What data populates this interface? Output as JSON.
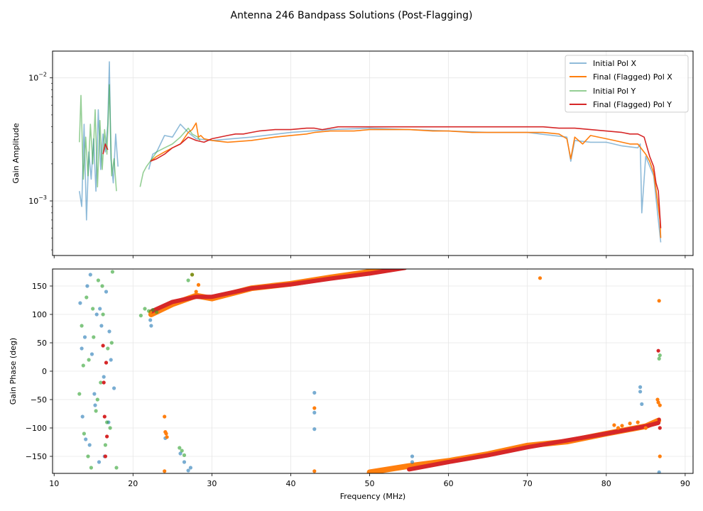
{
  "chart_data": {
    "title": "Antenna 246 Bandpass Solutions (Post-Flagging)",
    "colors": {
      "initial_x": "#1f77b4",
      "final_x": "#ff7f0e",
      "initial_y": "#2ca02c",
      "final_y": "#d62728",
      "grid": "#e6e6e6"
    },
    "panels": [
      {
        "id": "amplitude",
        "type": "line",
        "yscale": "log",
        "ylabel": "Gain Amplitude",
        "xlim": [
          9.8,
          91.0
        ],
        "ylim": [
          0.00036,
          0.0165
        ],
        "yticks": [
          {
            "value": 0.001,
            "base": "10",
            "exp": "−3"
          },
          {
            "value": 0.01,
            "base": "10",
            "exp": "−2"
          }
        ],
        "minor_yticks": [
          0.0004,
          0.0005,
          0.0006,
          0.0007,
          0.0008,
          0.0009,
          0.002,
          0.003,
          0.004,
          0.005,
          0.006,
          0.007,
          0.008,
          0.009
        ],
        "legend": {
          "position": "top-right",
          "entries": [
            {
              "label": "Initial Pol X",
              "series": "initial_x"
            },
            {
              "label": "Final (Flagged) Pol X",
              "series": "final_x"
            },
            {
              "label": "Initial Pol Y",
              "series": "initial_y"
            },
            {
              "label": "Final (Flagged) Pol Y",
              "series": "final_y"
            }
          ]
        },
        "series": [
          {
            "name": "Initial Pol X",
            "key": "initial_x",
            "alpha": 0.5,
            "x": [
              13.2,
              13.5,
              13.8,
              14.1,
              14.4,
              14.7,
              15.0,
              15.3,
              15.6,
              15.9,
              16.2,
              16.5,
              16.8,
              17.0,
              17.2,
              17.5,
              17.8,
              18.1,
              null,
              22.0,
              22.5,
              23.0,
              24.0,
              25.0,
              26.0,
              27.0,
              28.0,
              30.0,
              35.0,
              40.0,
              45.0,
              50.0,
              55.0,
              60.0,
              65.0,
              70.0,
              75.0,
              75.5,
              76.0,
              78.0,
              80.0,
              82.0,
              84.0,
              84.3,
              84.5,
              85.0,
              86.0,
              86.5,
              86.9
            ],
            "y": [
              0.0012,
              0.0009,
              0.0042,
              0.0007,
              0.0025,
              0.0015,
              0.0032,
              0.0012,
              0.0055,
              0.0018,
              0.0035,
              0.0025,
              0.0042,
              0.0135,
              0.0022,
              0.0014,
              0.0035,
              0.0019,
              null,
              0.0018,
              0.0024,
              0.0025,
              0.0034,
              0.0033,
              0.0042,
              0.0036,
              0.0032,
              0.0031,
              0.0033,
              0.0036,
              0.0038,
              0.0039,
              0.0038,
              0.0037,
              0.0036,
              0.0036,
              0.0033,
              0.0021,
              0.0031,
              0.003,
              0.003,
              0.0028,
              0.0027,
              0.0029,
              0.0008,
              0.0023,
              0.0016,
              0.0008,
              0.00046
            ]
          },
          {
            "name": "Final (Flagged) Pol X",
            "key": "final_x",
            "alpha": 1.0,
            "x": [
              22.2,
              23.0,
              24.0,
              25.0,
              26.0,
              27.0,
              27.5,
              28.0,
              28.3,
              28.6,
              29.0,
              30.0,
              32.0,
              35.0,
              38.0,
              40.0,
              42.0,
              43.0,
              45.0,
              48.0,
              50.0,
              52.0,
              55.0,
              58.0,
              60.0,
              63.0,
              65.0,
              67.0,
              70.0,
              72.0,
              74.0,
              75.0,
              75.5,
              76.0,
              77.0,
              78.0,
              80.0,
              81.0,
              82.0,
              83.0,
              84.0,
              85.0,
              85.5,
              86.0,
              86.5,
              86.8,
              86.9
            ],
            "y": [
              0.0021,
              0.0023,
              0.0025,
              0.0027,
              0.0029,
              0.0036,
              0.0038,
              0.0043,
              0.0033,
              0.0034,
              0.0032,
              0.0031,
              0.003,
              0.0031,
              0.0033,
              0.0034,
              0.0035,
              0.0036,
              0.0037,
              0.0037,
              0.0038,
              0.0038,
              0.0038,
              0.0037,
              0.0037,
              0.0036,
              0.0036,
              0.0036,
              0.0036,
              0.0036,
              0.0035,
              0.0032,
              0.0022,
              0.0033,
              0.0029,
              0.0034,
              0.0032,
              0.0031,
              0.003,
              0.0029,
              0.0029,
              0.0024,
              0.0021,
              0.0017,
              0.001,
              0.0007,
              0.0005
            ]
          },
          {
            "name": "Initial Pol Y",
            "key": "initial_y",
            "alpha": 0.5,
            "x": [
              13.2,
              13.4,
              13.7,
              14.0,
              14.3,
              14.6,
              14.9,
              15.2,
              15.5,
              15.8,
              16.1,
              16.4,
              16.7,
              17.0,
              17.3,
              17.6,
              17.9,
              null,
              20.9,
              21.3,
              21.7,
              22.2,
              23.0,
              24.0,
              25.0,
              26.0,
              27.0,
              27.5,
              28.2,
              28.5
            ],
            "y": [
              0.003,
              0.0072,
              0.0015,
              0.0033,
              0.0016,
              0.0042,
              0.002,
              0.0055,
              0.0013,
              0.0045,
              0.0018,
              0.0038,
              0.0024,
              0.0088,
              0.0016,
              0.0022,
              0.0012,
              null,
              0.0013,
              0.0017,
              0.0019,
              0.0021,
              0.0025,
              0.0027,
              0.0029,
              0.0033,
              0.0039,
              0.0035,
              0.0033,
              0.0031
            ]
          },
          {
            "name": "Final (Flagged) Pol Y",
            "key": "final_y",
            "alpha": 1.0,
            "x": [
              16.2,
              16.5,
              16.8,
              null,
              22.2,
              23.0,
              24.0,
              25.0,
              26.0,
              27.0,
              28.0,
              29.0,
              30.0,
              32.0,
              33.0,
              34.0,
              35.0,
              36.0,
              38.0,
              40.0,
              42.0,
              43.0,
              44.0,
              45.0,
              46.0,
              48.0,
              50.0,
              52.0,
              55.0,
              58.0,
              60.0,
              63.0,
              65.0,
              68.0,
              70.0,
              72.0,
              74.0,
              76.0,
              78.0,
              80.0,
              82.0,
              83.0,
              84.0,
              84.8,
              85.5,
              86.0,
              86.3,
              86.6,
              86.9
            ],
            "y": [
              0.0024,
              0.0029,
              0.0026,
              null,
              0.0021,
              0.0022,
              0.0024,
              0.0027,
              0.0029,
              0.0033,
              0.0031,
              0.003,
              0.0032,
              0.0034,
              0.0035,
              0.0035,
              0.0036,
              0.0037,
              0.0038,
              0.0038,
              0.0039,
              0.0039,
              0.0038,
              0.0039,
              0.004,
              0.004,
              0.004,
              0.004,
              0.004,
              0.004,
              0.004,
              0.004,
              0.004,
              0.004,
              0.004,
              0.004,
              0.0039,
              0.0039,
              0.0038,
              0.0037,
              0.0036,
              0.0035,
              0.0035,
              0.0033,
              0.0023,
              0.0019,
              0.0014,
              0.0012,
              0.0006
            ]
          }
        ]
      },
      {
        "id": "phase",
        "type": "scatter",
        "ylabel": "Gain Phase (deg)",
        "xlabel": "Frequency (MHz)",
        "xlim": [
          9.8,
          91.0
        ],
        "ylim": [
          -180,
          180
        ],
        "xticks": [
          10,
          20,
          30,
          40,
          50,
          60,
          70,
          80,
          90
        ],
        "yticks": [
          -150,
          -100,
          -50,
          0,
          50,
          100,
          150
        ],
        "series": [
          {
            "name": "Initial Pol X",
            "key": "initial_x",
            "alpha": 0.6,
            "x": [
              13.3,
              13.6,
              13.9,
              14.2,
              14.5,
              14.8,
              15.1,
              15.4,
              15.7,
              16.0,
              16.3,
              16.6,
              16.9,
              17.2,
              13.5,
              14.0,
              14.6,
              15.2,
              15.8,
              16.4,
              17.0,
              17.6,
              22.2,
              22.3,
              24.1,
              26.0,
              26.5,
              27.0,
              27.3,
              43.0,
              43.0,
              43.0,
              55.4,
              55.4,
              84.3,
              84.3,
              84.5,
              86.7
            ],
            "y": [
              120,
              -80,
              60,
              150,
              -130,
              30,
              -40,
              100,
              -160,
              80,
              -10,
              140,
              -90,
              20,
              40,
              -120,
              170,
              -60,
              110,
              -150,
              70,
              -30,
              90,
              80,
              -118,
              -145,
              -160,
              -175,
              -170,
              -38,
              -73,
              -102,
              -150,
              -160,
              -28,
              -36,
              -58,
              -178
            ]
          },
          {
            "name": "Final (Flagged) Pol X",
            "key": "final_x",
            "alpha": 1.0,
            "x": [
              22.2,
              24.0,
              24.0,
              24.1,
              24.2,
              24.3,
              27.5,
              28.0,
              28.3,
              43.0,
              43.0,
              71.6,
              81.0,
              81.5,
              82.0,
              83.0,
              84.0,
              85.0,
              86.5,
              86.6,
              86.7,
              86.8,
              86.8
            ],
            "y": [
              104,
              -80,
              -176,
              -107,
              -110,
              -116,
              170,
              140,
              152,
              -65,
              -176,
              164,
              -95,
              -100,
              -96,
              -92,
              -90,
              -100,
              -50,
              -55,
              124,
              -60,
              -150
            ]
          },
          {
            "name": "Initial Pol Y",
            "key": "initial_y",
            "alpha": 0.6,
            "x": [
              13.2,
              13.5,
              13.8,
              14.1,
              14.4,
              14.7,
              15.0,
              15.3,
              15.6,
              15.9,
              16.2,
              16.5,
              16.8,
              17.1,
              17.4,
              13.7,
              14.3,
              14.9,
              15.5,
              16.1,
              16.7,
              17.3,
              17.9,
              21.0,
              21.5,
              22.0,
              22.5,
              23.0,
              25.9,
              26.2,
              26.5,
              27.0,
              27.5,
              86.7,
              86.8
            ],
            "y": [
              -40,
              80,
              -110,
              130,
              20,
              -170,
              60,
              -70,
              160,
              -20,
              100,
              -130,
              40,
              -100,
              175,
              10,
              -150,
              110,
              -50,
              150,
              -90,
              50,
              -170,
              98,
              110,
              106,
              108,
              104,
              -135,
              -140,
              -148,
              160,
              170,
              22,
              28
            ]
          },
          {
            "name": "Final (Flagged) Pol Y",
            "key": "final_y",
            "alpha": 1.0,
            "x": [
              16.2,
              16.3,
              16.4,
              16.5,
              16.6,
              16.7,
              86.6,
              86.7,
              86.8
            ],
            "y": [
              45,
              -20,
              -80,
              -150,
              15,
              -115,
              36,
              -85,
              -100
            ]
          }
        ],
        "trends": [
          {
            "key": "final_x",
            "x": [
              22.3,
              25,
              28,
              30,
              35,
              40,
              45,
              50,
              55
            ],
            "y": [
              100,
              118,
              133,
              128,
              146,
              154,
              165,
              175,
              185
            ]
          },
          {
            "key": "final_x",
            "x": [
              50,
              55,
              60,
              65,
              70,
              75,
              80,
              85,
              86.6
            ],
            "y": [
              -178,
              -167,
              -158,
              -146,
              -131,
              -124,
              -110,
              -97,
              -87
            ]
          },
          {
            "key": "final_y",
            "x": [
              22.3,
              25,
              28,
              30,
              35,
              40,
              45,
              50,
              54.5
            ],
            "y": [
              105,
              122,
              131,
              131,
              146,
              153,
              163,
              172,
              182
            ]
          },
          {
            "key": "final_y",
            "x": [
              55,
              60,
              65,
              70,
              75,
              80,
              85,
              86.6
            ],
            "y": [
              -173,
              -160,
              -148,
              -134,
              -122,
              -110,
              -97,
              -91
            ]
          }
        ]
      }
    ]
  }
}
